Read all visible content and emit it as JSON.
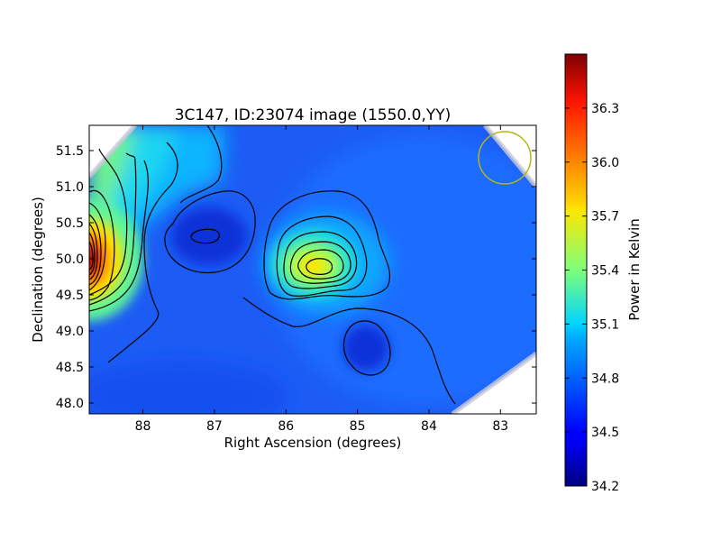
{
  "chart_data": {
    "type": "heatmap",
    "title": "3C147, ID:23074 image (1550.0,YY)",
    "xlabel": "Right Ascension (degrees)",
    "ylabel": "Declination (degrees)",
    "xlim": [
      88.75,
      82.5
    ],
    "ylim": [
      47.85,
      51.85
    ],
    "x_ticks": [
      88,
      87,
      86,
      85,
      84,
      83
    ],
    "y_ticks": [
      48.0,
      48.5,
      49.0,
      49.5,
      50.0,
      50.5,
      51.0,
      51.5
    ],
    "colorbar": {
      "label": "Power in Kelvin",
      "range": [
        34.2,
        36.6
      ],
      "ticks": [
        34.2,
        34.5,
        34.8,
        35.1,
        35.4,
        35.7,
        36.0,
        36.3
      ],
      "colormap": "jet"
    },
    "background_level": 34.62,
    "features": [
      {
        "name": "bright-edge-source",
        "ra": 88.75,
        "dec": 50.0,
        "peak": 36.6
      },
      {
        "name": "central-source",
        "ra": 85.6,
        "dec": 49.88,
        "peak": 35.85
      },
      {
        "name": "upper-left-gradient",
        "ra": 88.3,
        "dec": 51.4,
        "peak": 35.4
      },
      {
        "name": "minimum-north",
        "ra": 87.15,
        "dec": 50.3,
        "peak": 34.35
      },
      {
        "name": "minimum-south",
        "ra": 84.95,
        "dec": 48.75,
        "peak": 34.4
      }
    ],
    "marker_circle": {
      "ra": 83.0,
      "dec": 51.4,
      "color": "#b5b51a"
    },
    "grid": false
  }
}
